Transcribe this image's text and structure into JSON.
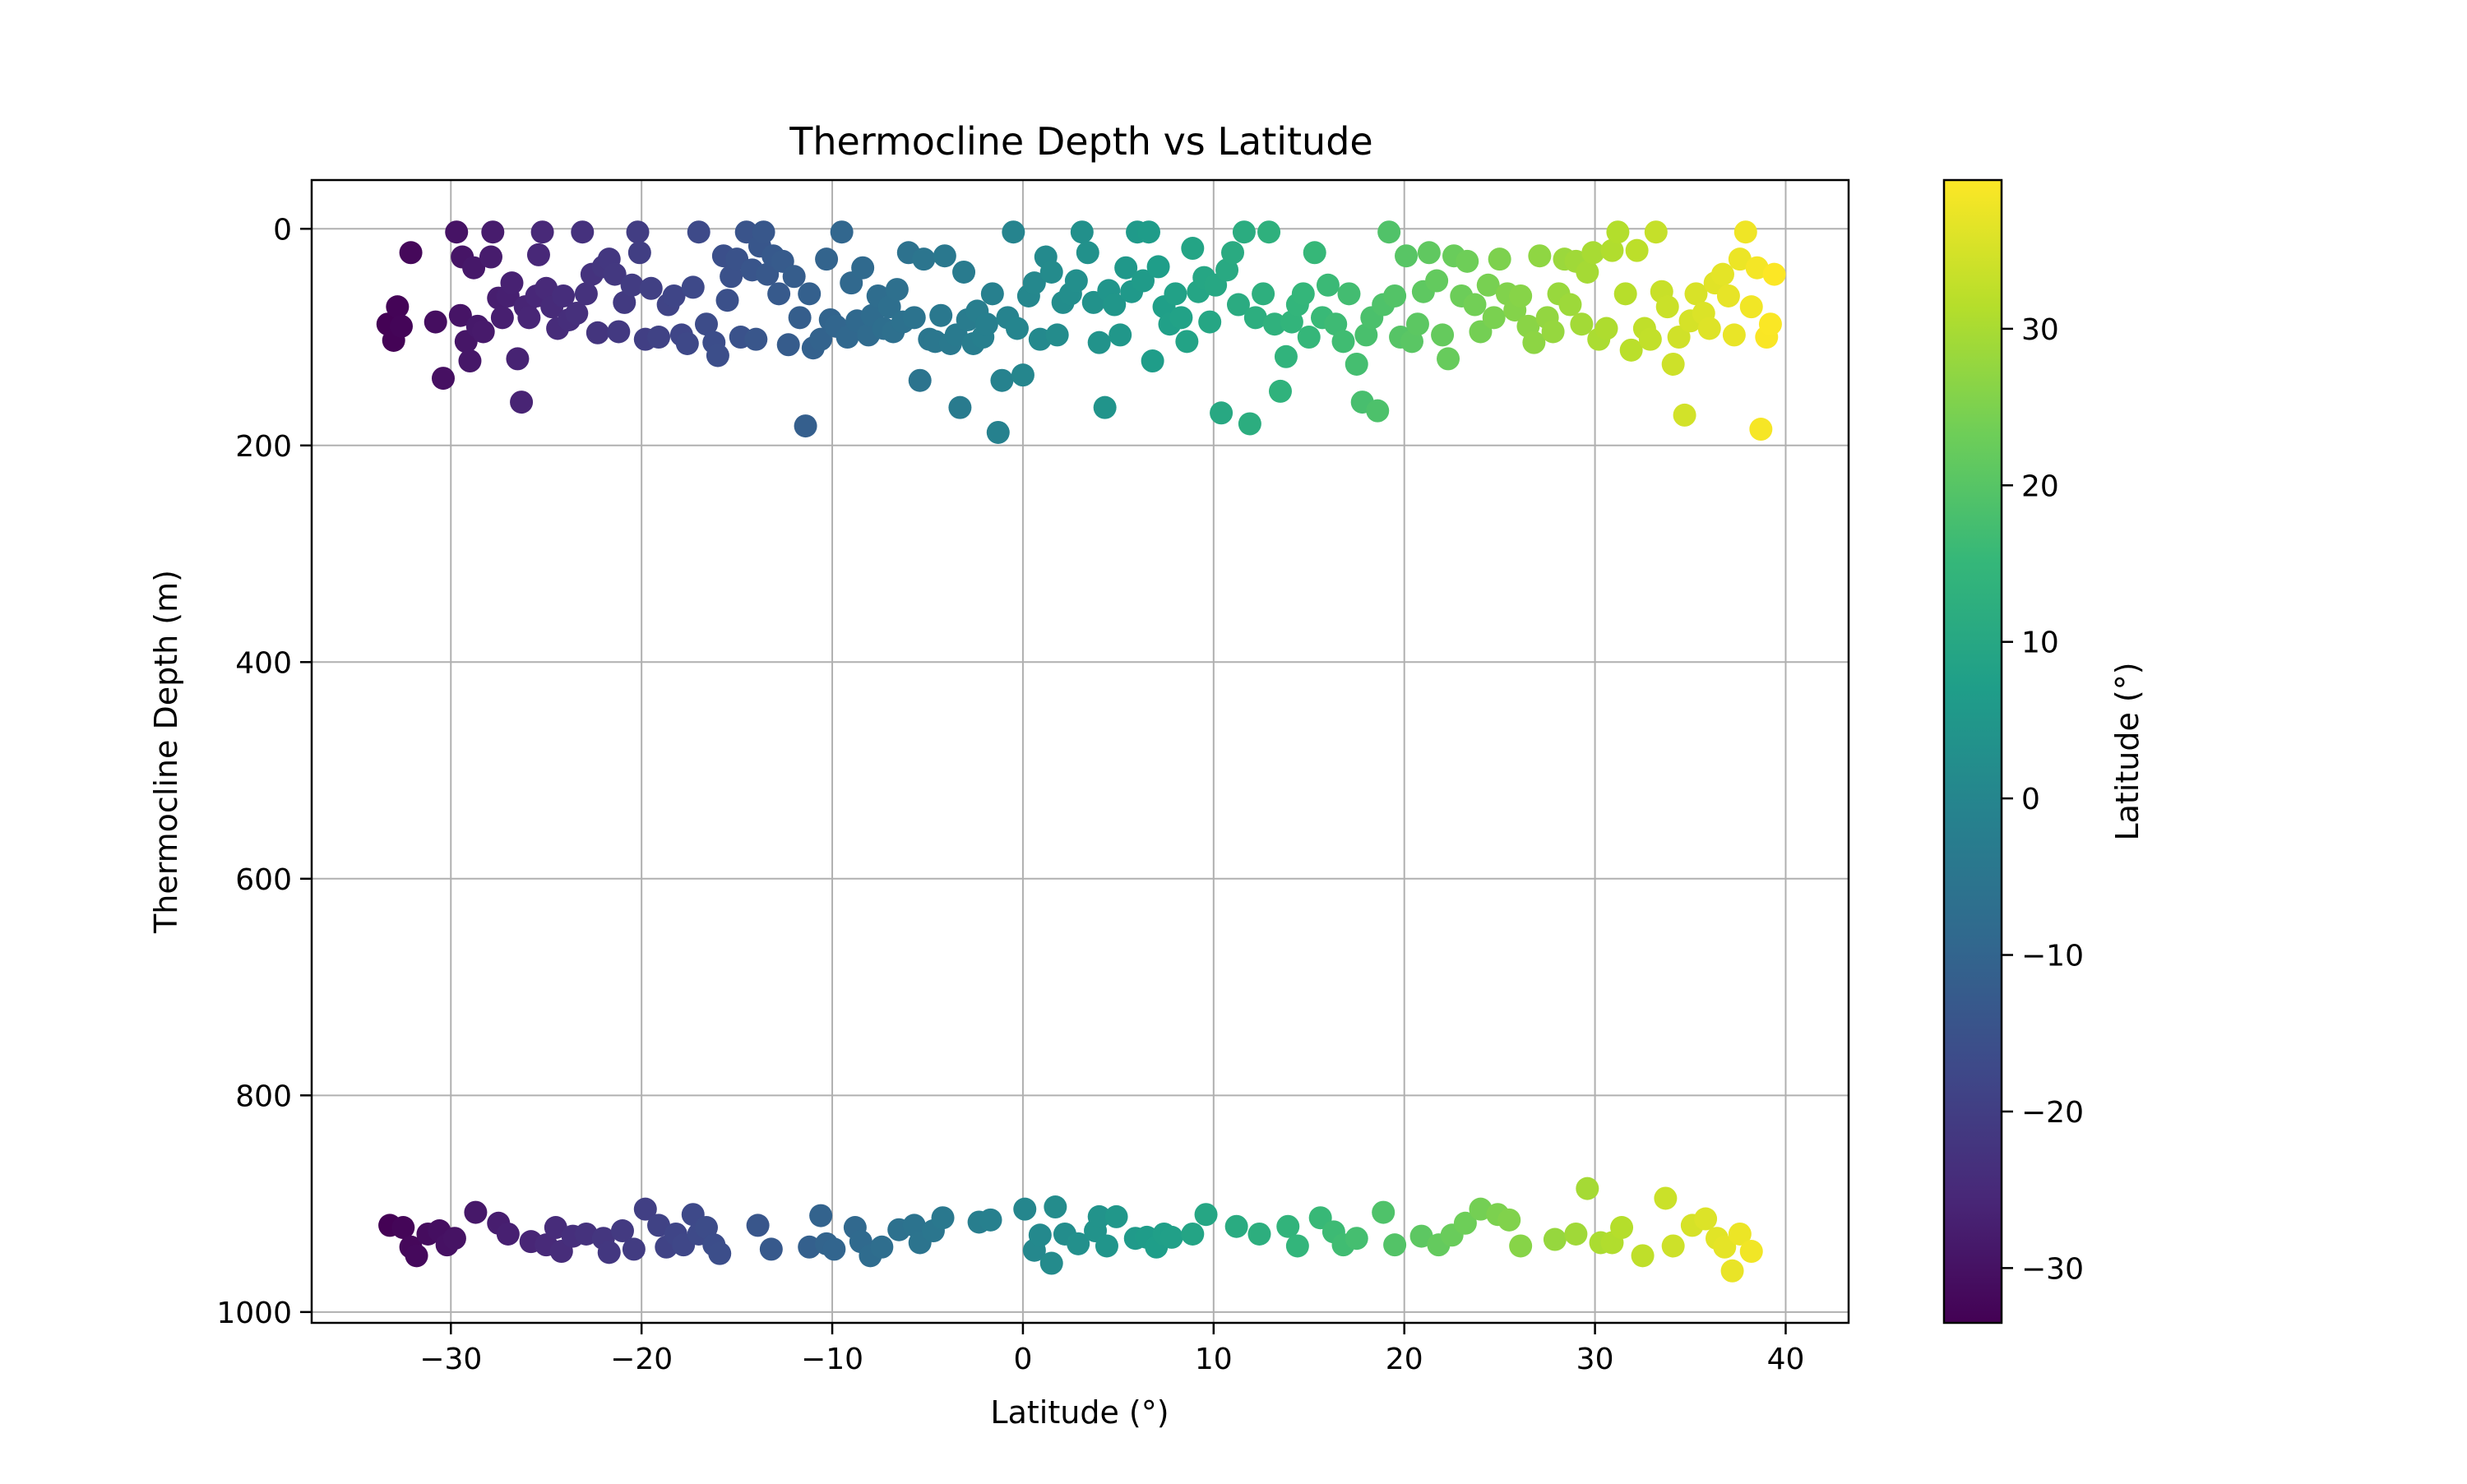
{
  "chart_data": {
    "type": "scatter",
    "title": "Thermocline Depth vs Latitude",
    "xlabel": "Latitude (°)",
    "ylabel": "Thermocline Depth (m)",
    "xlim": [
      -37.3,
      43.3
    ],
    "ylim": [
      1010,
      -45
    ],
    "y_inverted": true,
    "grid": true,
    "xticks": [
      -30,
      -20,
      -10,
      0,
      10,
      20,
      30,
      40
    ],
    "xtick_labels": [
      "−30",
      "−20",
      "−10",
      "0",
      "10",
      "20",
      "30",
      "40"
    ],
    "yticks": [
      0,
      200,
      400,
      600,
      800,
      1000
    ],
    "ytick_labels": [
      "0",
      "200",
      "400",
      "600",
      "800",
      "1000"
    ],
    "colorbar": {
      "label": "Latitude (°)",
      "colormap": "viridis",
      "range": [
        -33.5,
        39.5
      ],
      "ticks": [
        -30,
        -20,
        -10,
        0,
        10,
        20,
        30
      ],
      "tick_labels": [
        "−30",
        "−20",
        "−10",
        "0",
        "10",
        "20",
        "30"
      ],
      "colors": [
        "#440154",
        "#482878",
        "#3e4989",
        "#31688e",
        "#26828e",
        "#1f9e89",
        "#35b779",
        "#6ece58",
        "#b5de2b",
        "#fde725"
      ]
    },
    "points": [
      [
        -33.3,
        88
      ],
      [
        -33.0,
        103
      ],
      [
        -32.8,
        72
      ],
      [
        -32.6,
        90
      ],
      [
        -32.1,
        22
      ],
      [
        -30.8,
        86
      ],
      [
        -30.4,
        138
      ],
      [
        -29.7,
        3
      ],
      [
        -29.5,
        80
      ],
      [
        -29.4,
        26
      ],
      [
        -29.2,
        104
      ],
      [
        -29.0,
        122
      ],
      [
        -28.8,
        36
      ],
      [
        -28.6,
        90
      ],
      [
        -28.3,
        95
      ],
      [
        -27.9,
        26
      ],
      [
        -27.8,
        3
      ],
      [
        -27.5,
        64
      ],
      [
        -27.3,
        82
      ],
      [
        -27.0,
        62
      ],
      [
        -26.8,
        50
      ],
      [
        -26.5,
        120
      ],
      [
        -26.3,
        160
      ],
      [
        -26.1,
        72
      ],
      [
        -25.9,
        82
      ],
      [
        -25.5,
        62
      ],
      [
        -25.4,
        24
      ],
      [
        -25.2,
        3
      ],
      [
        -25.0,
        55
      ],
      [
        -24.7,
        72
      ],
      [
        -24.4,
        92
      ],
      [
        -24.1,
        62
      ],
      [
        -23.8,
        84
      ],
      [
        -23.4,
        78
      ],
      [
        -23.1,
        3
      ],
      [
        -22.9,
        60
      ],
      [
        -22.6,
        42
      ],
      [
        -22.3,
        96
      ],
      [
        -22.0,
        35
      ],
      [
        -21.7,
        28
      ],
      [
        -21.4,
        42
      ],
      [
        -21.2,
        95
      ],
      [
        -20.9,
        68
      ],
      [
        -20.5,
        52
      ],
      [
        -20.2,
        3
      ],
      [
        -20.1,
        22
      ],
      [
        -19.8,
        102
      ],
      [
        -19.5,
        55
      ],
      [
        -19.1,
        100
      ],
      [
        -18.6,
        70
      ],
      [
        -18.3,
        62
      ],
      [
        -17.9,
        98
      ],
      [
        -17.6,
        106
      ],
      [
        -17.3,
        54
      ],
      [
        -17.0,
        3
      ],
      [
        -16.6,
        88
      ],
      [
        -16.2,
        105
      ],
      [
        -16.0,
        117
      ],
      [
        -15.7,
        25
      ],
      [
        -15.5,
        66
      ],
      [
        -15.3,
        44
      ],
      [
        -15.0,
        28
      ],
      [
        -14.8,
        100
      ],
      [
        -14.5,
        3
      ],
      [
        -14.2,
        38
      ],
      [
        -14.0,
        102
      ],
      [
        -13.8,
        16
      ],
      [
        -13.6,
        3
      ],
      [
        -13.4,
        42
      ],
      [
        -13.1,
        25
      ],
      [
        -12.8,
        60
      ],
      [
        -12.6,
        30
      ],
      [
        -12.3,
        107
      ],
      [
        -12.0,
        44
      ],
      [
        -11.7,
        82
      ],
      [
        -11.4,
        182
      ],
      [
        -11.2,
        60
      ],
      [
        -11.0,
        110
      ],
      [
        -10.6,
        102
      ],
      [
        -10.3,
        28
      ],
      [
        -10.1,
        84
      ],
      [
        -9.8,
        90
      ],
      [
        -9.5,
        3
      ],
      [
        -9.2,
        100
      ],
      [
        -9.0,
        50
      ],
      [
        -8.7,
        85
      ],
      [
        -8.4,
        36
      ],
      [
        -8.1,
        98
      ],
      [
        -7.9,
        80
      ],
      [
        -7.6,
        62
      ],
      [
        -7.3,
        92
      ],
      [
        -7.0,
        72
      ],
      [
        -6.8,
        95
      ],
      [
        -6.6,
        56
      ],
      [
        -6.3,
        86
      ],
      [
        -6.0,
        22
      ],
      [
        -5.7,
        82
      ],
      [
        -5.4,
        140
      ],
      [
        -5.2,
        28
      ],
      [
        -4.9,
        102
      ],
      [
        -4.6,
        104
      ],
      [
        -4.3,
        80
      ],
      [
        -4.1,
        25
      ],
      [
        -3.8,
        106
      ],
      [
        -3.5,
        98
      ],
      [
        -3.3,
        165
      ],
      [
        -3.1,
        40
      ],
      [
        -2.9,
        84
      ],
      [
        -2.6,
        106
      ],
      [
        -2.4,
        76
      ],
      [
        -2.1,
        100
      ],
      [
        -1.9,
        88
      ],
      [
        -1.6,
        60
      ],
      [
        -1.3,
        188
      ],
      [
        -1.1,
        140
      ],
      [
        -0.8,
        82
      ],
      [
        -0.5,
        3
      ],
      [
        -0.3,
        92
      ],
      [
        0.0,
        135
      ],
      [
        0.3,
        62
      ],
      [
        0.6,
        50
      ],
      [
        0.9,
        102
      ],
      [
        1.2,
        26
      ],
      [
        1.5,
        40
      ],
      [
        1.8,
        98
      ],
      [
        2.1,
        68
      ],
      [
        2.5,
        60
      ],
      [
        2.8,
        48
      ],
      [
        3.1,
        3
      ],
      [
        3.4,
        22
      ],
      [
        3.7,
        68
      ],
      [
        4.0,
        105
      ],
      [
        4.3,
        165
      ],
      [
        4.5,
        57
      ],
      [
        4.8,
        70
      ],
      [
        5.1,
        98
      ],
      [
        5.4,
        36
      ],
      [
        5.7,
        58
      ],
      [
        6.0,
        3
      ],
      [
        6.3,
        48
      ],
      [
        6.6,
        3
      ],
      [
        6.8,
        122
      ],
      [
        7.1,
        35
      ],
      [
        7.4,
        72
      ],
      [
        7.7,
        88
      ],
      [
        8.0,
        60
      ],
      [
        8.3,
        82
      ],
      [
        8.6,
        104
      ],
      [
        8.9,
        18
      ],
      [
        9.2,
        58
      ],
      [
        9.5,
        45
      ],
      [
        9.8,
        86
      ],
      [
        10.1,
        52
      ],
      [
        10.4,
        170
      ],
      [
        10.7,
        38
      ],
      [
        11.0,
        22
      ],
      [
        11.3,
        70
      ],
      [
        11.6,
        3
      ],
      [
        11.9,
        180
      ],
      [
        12.2,
        82
      ],
      [
        12.6,
        60
      ],
      [
        12.9,
        3
      ],
      [
        13.2,
        88
      ],
      [
        13.5,
        150
      ],
      [
        13.8,
        118
      ],
      [
        14.1,
        86
      ],
      [
        14.4,
        70
      ],
      [
        14.7,
        60
      ],
      [
        15.0,
        100
      ],
      [
        15.3,
        22
      ],
      [
        15.7,
        82
      ],
      [
        16.0,
        52
      ],
      [
        16.4,
        88
      ],
      [
        16.8,
        104
      ],
      [
        17.1,
        60
      ],
      [
        17.5,
        125
      ],
      [
        17.8,
        160
      ],
      [
        18.0,
        98
      ],
      [
        18.3,
        82
      ],
      [
        18.6,
        168
      ],
      [
        18.9,
        70
      ],
      [
        19.2,
        3
      ],
      [
        19.5,
        62
      ],
      [
        19.8,
        100
      ],
      [
        20.1,
        25
      ],
      [
        20.4,
        104
      ],
      [
        20.7,
        88
      ],
      [
        21.0,
        58
      ],
      [
        21.3,
        22
      ],
      [
        21.7,
        48
      ],
      [
        22.0,
        98
      ],
      [
        22.3,
        120
      ],
      [
        22.6,
        25
      ],
      [
        23.0,
        62
      ],
      [
        23.3,
        30
      ],
      [
        23.7,
        70
      ],
      [
        24.0,
        95
      ],
      [
        24.4,
        52
      ],
      [
        24.7,
        82
      ],
      [
        25.0,
        28
      ],
      [
        25.4,
        60
      ],
      [
        25.8,
        75
      ],
      [
        26.1,
        62
      ],
      [
        26.5,
        90
      ],
      [
        26.8,
        105
      ],
      [
        27.1,
        25
      ],
      [
        27.5,
        82
      ],
      [
        27.8,
        95
      ],
      [
        28.1,
        60
      ],
      [
        28.4,
        28
      ],
      [
        28.7,
        70
      ],
      [
        29.0,
        30
      ],
      [
        29.3,
        88
      ],
      [
        29.6,
        40
      ],
      [
        29.9,
        22
      ],
      [
        30.2,
        102
      ],
      [
        30.6,
        92
      ],
      [
        30.9,
        20
      ],
      [
        31.2,
        3
      ],
      [
        31.6,
        60
      ],
      [
        31.9,
        112
      ],
      [
        32.2,
        20
      ],
      [
        32.6,
        92
      ],
      [
        32.9,
        102
      ],
      [
        33.2,
        3
      ],
      [
        33.5,
        58
      ],
      [
        33.8,
        72
      ],
      [
        34.1,
        125
      ],
      [
        34.4,
        100
      ],
      [
        34.7,
        172
      ],
      [
        35.0,
        85
      ],
      [
        35.3,
        60
      ],
      [
        35.7,
        78
      ],
      [
        36.0,
        92
      ],
      [
        36.3,
        50
      ],
      [
        36.7,
        42
      ],
      [
        37.0,
        62
      ],
      [
        37.3,
        98
      ],
      [
        37.6,
        28
      ],
      [
        37.9,
        3
      ],
      [
        38.2,
        72
      ],
      [
        38.5,
        36
      ],
      [
        38.7,
        185
      ],
      [
        39.0,
        100
      ],
      [
        39.2,
        88
      ],
      [
        39.4,
        42
      ],
      [
        -33.2,
        920
      ],
      [
        -32.5,
        922
      ],
      [
        -32.1,
        940
      ],
      [
        -31.8,
        948
      ],
      [
        -31.2,
        928
      ],
      [
        -30.6,
        925
      ],
      [
        -30.2,
        938
      ],
      [
        -29.8,
        932
      ],
      [
        -28.7,
        908
      ],
      [
        -27.5,
        918
      ],
      [
        -27.0,
        928
      ],
      [
        -25.8,
        935
      ],
      [
        -25.0,
        938
      ],
      [
        -24.5,
        922
      ],
      [
        -24.2,
        944
      ],
      [
        -23.6,
        930
      ],
      [
        -22.9,
        928
      ],
      [
        -22.0,
        932
      ],
      [
        -21.7,
        945
      ],
      [
        -21.0,
        925
      ],
      [
        -20.4,
        942
      ],
      [
        -19.8,
        905
      ],
      [
        -19.1,
        920
      ],
      [
        -18.7,
        940
      ],
      [
        -18.2,
        928
      ],
      [
        -17.8,
        938
      ],
      [
        -17.3,
        910
      ],
      [
        -17.0,
        928
      ],
      [
        -16.6,
        922
      ],
      [
        -16.2,
        938
      ],
      [
        -15.9,
        946
      ],
      [
        -13.9,
        920
      ],
      [
        -13.2,
        942
      ],
      [
        -11.2,
        940
      ],
      [
        -10.6,
        911
      ],
      [
        -10.3,
        937
      ],
      [
        -9.9,
        942
      ],
      [
        -8.8,
        922
      ],
      [
        -8.5,
        935
      ],
      [
        -8.0,
        948
      ],
      [
        -7.4,
        940
      ],
      [
        -6.5,
        924
      ],
      [
        -5.7,
        920
      ],
      [
        -5.4,
        936
      ],
      [
        -4.7,
        925
      ],
      [
        -4.2,
        913
      ],
      [
        -2.3,
        917
      ],
      [
        -1.7,
        915
      ],
      [
        0.1,
        905
      ],
      [
        0.6,
        943
      ],
      [
        0.9,
        929
      ],
      [
        1.5,
        955
      ],
      [
        1.7,
        903
      ],
      [
        2.2,
        928
      ],
      [
        2.9,
        937
      ],
      [
        3.8,
        925
      ],
      [
        4.0,
        912
      ],
      [
        4.4,
        939
      ],
      [
        4.9,
        912
      ],
      [
        5.9,
        932
      ],
      [
        6.5,
        931
      ],
      [
        7.0,
        940
      ],
      [
        7.4,
        928
      ],
      [
        7.8,
        931
      ],
      [
        8.9,
        928
      ],
      [
        9.6,
        910
      ],
      [
        11.2,
        921
      ],
      [
        12.4,
        928
      ],
      [
        13.9,
        921
      ],
      [
        14.4,
        939
      ],
      [
        15.6,
        913
      ],
      [
        16.3,
        926
      ],
      [
        16.8,
        938
      ],
      [
        17.5,
        932
      ],
      [
        18.9,
        908
      ],
      [
        19.5,
        938
      ],
      [
        20.9,
        930
      ],
      [
        21.8,
        938
      ],
      [
        22.5,
        929
      ],
      [
        23.2,
        918
      ],
      [
        24.0,
        905
      ],
      [
        24.9,
        910
      ],
      [
        25.5,
        915
      ],
      [
        26.1,
        939
      ],
      [
        27.9,
        933
      ],
      [
        29.0,
        928
      ],
      [
        29.6,
        886
      ],
      [
        30.3,
        936
      ],
      [
        30.9,
        936
      ],
      [
        31.4,
        922
      ],
      [
        32.5,
        948
      ],
      [
        33.7,
        895
      ],
      [
        34.1,
        939
      ],
      [
        35.1,
        920
      ],
      [
        35.8,
        914
      ],
      [
        36.4,
        932
      ],
      [
        36.8,
        940
      ],
      [
        37.2,
        962
      ],
      [
        37.6,
        928
      ],
      [
        38.2,
        944
      ]
    ]
  }
}
